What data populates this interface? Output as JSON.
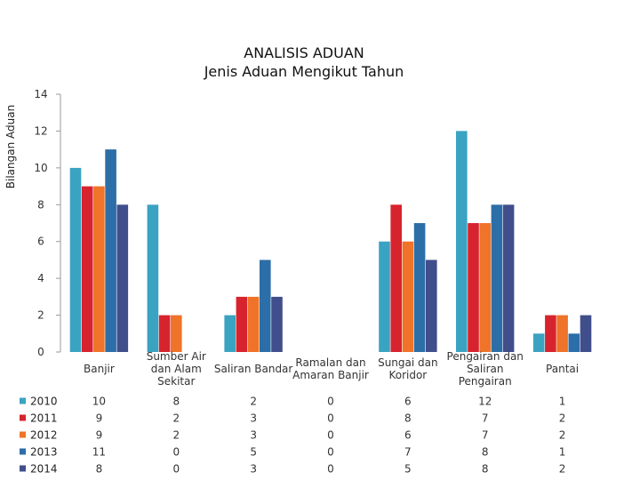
{
  "chart_data": {
    "type": "bar",
    "title": [
      "ANALISIS ADUAN",
      "Jenis Aduan Mengikut Tahun"
    ],
    "ylabel": "Bilangan Aduan",
    "xlabel": "",
    "ylim": [
      0,
      14
    ],
    "yticks": [
      0,
      2,
      4,
      6,
      8,
      10,
      12,
      14
    ],
    "grid": false,
    "legend": "data-table",
    "categories": [
      [
        "Banjir"
      ],
      [
        "Sumber Air",
        "dan Alam",
        "Sekitar"
      ],
      [
        "Saliran Bandar"
      ],
      [
        "Ramalan dan",
        "Amaran Banjir"
      ],
      [
        "Sungai dan",
        "Koridor"
      ],
      [
        "Pengairan dan",
        "Saliran",
        "Pengairan"
      ],
      [
        "Pantai"
      ]
    ],
    "series": [
      {
        "name": "2010",
        "color": "#3aa3c2",
        "values": [
          10,
          8,
          2,
          0,
          6,
          12,
          1
        ]
      },
      {
        "name": "2011",
        "color": "#d7232e",
        "values": [
          9,
          2,
          3,
          0,
          8,
          7,
          2
        ]
      },
      {
        "name": "2012",
        "color": "#ef7328",
        "values": [
          9,
          2,
          3,
          0,
          6,
          7,
          2
        ]
      },
      {
        "name": "2013",
        "color": "#2c6ea7",
        "values": [
          11,
          0,
          5,
          0,
          7,
          8,
          1
        ]
      },
      {
        "name": "2014",
        "color": "#404e8c",
        "values": [
          8,
          0,
          3,
          0,
          5,
          8,
          2
        ]
      }
    ]
  }
}
